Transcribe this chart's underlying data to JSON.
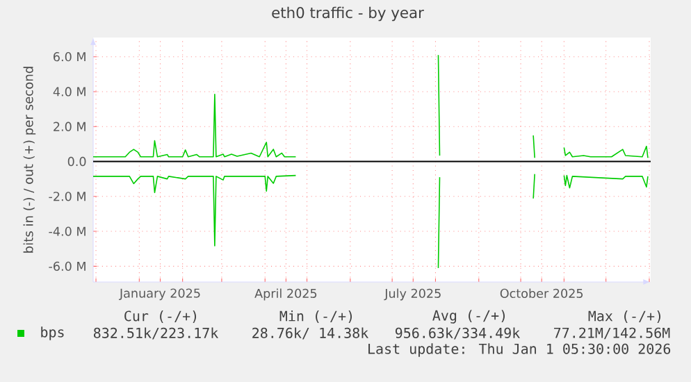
{
  "chart_data": {
    "type": "line",
    "title": "eth0 traffic - by year",
    "ylabel": "bits in (-) / out (+) per second",
    "xlim": [
      "2024-11-29",
      "2026-01-02"
    ],
    "xticks": [
      {
        "value": "2024-12-01",
        "label": null
      },
      {
        "value": "2025-01-01",
        "label": null
      },
      {
        "value": "2025-01-16",
        "label": "January 2025"
      },
      {
        "value": "2025-02-01",
        "label": null
      },
      {
        "value": "2025-03-01",
        "label": null
      },
      {
        "value": "2025-04-01",
        "label": null
      },
      {
        "value": "2025-04-16",
        "label": "April 2025"
      },
      {
        "value": "2025-05-01",
        "label": null
      },
      {
        "value": "2025-06-01",
        "label": null
      },
      {
        "value": "2025-07-01",
        "label": null
      },
      {
        "value": "2025-07-16",
        "label": "July 2025"
      },
      {
        "value": "2025-08-01",
        "label": null
      },
      {
        "value": "2025-09-01",
        "label": null
      },
      {
        "value": "2025-10-01",
        "label": null
      },
      {
        "value": "2025-10-16",
        "label": "October 2025"
      },
      {
        "value": "2025-11-01",
        "label": null
      },
      {
        "value": "2025-12-01",
        "label": null
      },
      {
        "value": "2026-01-01",
        "label": null
      }
    ],
    "ylim": [
      -6.9,
      7.1
    ],
    "yticks": [
      {
        "value": -6,
        "label": "-6.0 M"
      },
      {
        "value": -4,
        "label": "-4.0 M"
      },
      {
        "value": -2,
        "label": "-2.0 M"
      },
      {
        "value": 0,
        "label": "0.0"
      },
      {
        "value": 2,
        "label": "2.0 M"
      },
      {
        "value": 4,
        "label": "4.0 M"
      },
      {
        "value": 6,
        "label": "6.0 M"
      }
    ],
    "grid": true,
    "legend": "bottom",
    "marker": "none",
    "line_style": "solid",
    "series": [
      {
        "name": "bps",
        "color": "#00cc00",
        "x": [
          "2024-11-29",
          "2024-12-22",
          "2024-12-25",
          "2024-12-28",
          "2024-12-31",
          "2025-01-02",
          "2025-01-11",
          "2025-01-12",
          "2025-01-14",
          "2025-01-21",
          "2025-01-22",
          "2025-02-01",
          "2025-02-03",
          "2025-02-05",
          "2025-02-11",
          "2025-02-13",
          "2025-02-23",
          "2025-02-24",
          "2025-02-25",
          "2025-03-02",
          "2025-03-03",
          "2025-03-08",
          "2025-03-12",
          "2025-03-22",
          "2025-03-28",
          "2025-04-02",
          "2025-04-03",
          "2025-04-07",
          "2025-04-09",
          "2025-04-13",
          "2025-04-15",
          "2025-04-23",
          "2025-06-01",
          "2025-08-03",
          "2025-08-04",
          "2025-09-01",
          "2025-10-10",
          "2025-10-11",
          "2025-10-20",
          "2025-11-01",
          "2025-11-02",
          "2025-11-05",
          "2025-11-07",
          "2025-11-15",
          "2025-11-20",
          "2025-12-05",
          "2025-12-13",
          "2025-12-15",
          "2025-12-27",
          "2025-12-30",
          "2025-12-31"
        ],
        "values": [
          0.27,
          0.27,
          0.53,
          0.69,
          0.53,
          0.27,
          0.27,
          1.19,
          0.27,
          0.4,
          0.27,
          0.27,
          0.66,
          0.27,
          0.4,
          0.27,
          0.27,
          3.85,
          0.27,
          0.42,
          0.27,
          0.42,
          0.3,
          0.48,
          0.27,
          1.1,
          0.27,
          0.7,
          0.27,
          0.48,
          0.27,
          0.27,
          null,
          6.1,
          0.34,
          null,
          1.49,
          0.21,
          null,
          0.8,
          0.34,
          0.53,
          0.27,
          0.34,
          0.27,
          0.27,
          0.69,
          0.34,
          0.27,
          0.87,
          0.21
        ]
      },
      {
        "color": "#00cc00",
        "x": [
          "2024-11-29",
          "2024-12-25",
          "2024-12-28",
          "2024-12-31",
          "2025-01-02",
          "2025-01-11",
          "2025-01-12",
          "2025-01-14",
          "2025-01-21",
          "2025-01-22",
          "2025-02-03",
          "2025-02-05",
          "2025-02-23",
          "2025-02-24",
          "2025-02-25",
          "2025-03-02",
          "2025-03-03",
          "2025-04-01",
          "2025-04-02",
          "2025-04-03",
          "2025-04-07",
          "2025-04-09",
          "2025-04-23",
          "2025-06-01",
          "2025-08-03",
          "2025-08-04",
          "2025-09-01",
          "2025-10-10",
          "2025-10-11",
          "2025-10-20",
          "2025-11-01",
          "2025-11-02",
          "2025-11-03",
          "2025-11-05",
          "2025-11-07",
          "2025-12-13",
          "2025-12-15",
          "2025-12-27",
          "2025-12-30",
          "2025-12-31"
        ],
        "values": [
          -0.85,
          -0.85,
          -1.27,
          -1.0,
          -0.85,
          -0.85,
          -1.78,
          -0.85,
          -1.0,
          -0.85,
          -1.0,
          -0.85,
          -0.85,
          -4.83,
          -0.85,
          -1.06,
          -0.85,
          -0.85,
          -1.7,
          -0.85,
          -1.25,
          -0.85,
          -0.8,
          null,
          -6.1,
          -0.9,
          null,
          -2.12,
          -0.72,
          null,
          -0.8,
          -1.38,
          -0.8,
          -1.51,
          -0.85,
          -1.0,
          -0.85,
          -0.85,
          -1.46,
          -0.85
        ]
      }
    ],
    "annotations": [
      "Cur (-/+)",
      "Min (-/+)",
      "Avg (-/+)",
      "Max (-/+)",
      "832.51k/223.17k",
      "28.76k/ 14.38k",
      "956.63k/334.49k",
      "77.21M/142.56M",
      "Last update: Thu Jan  1 05:30:00 2026"
    ]
  }
}
